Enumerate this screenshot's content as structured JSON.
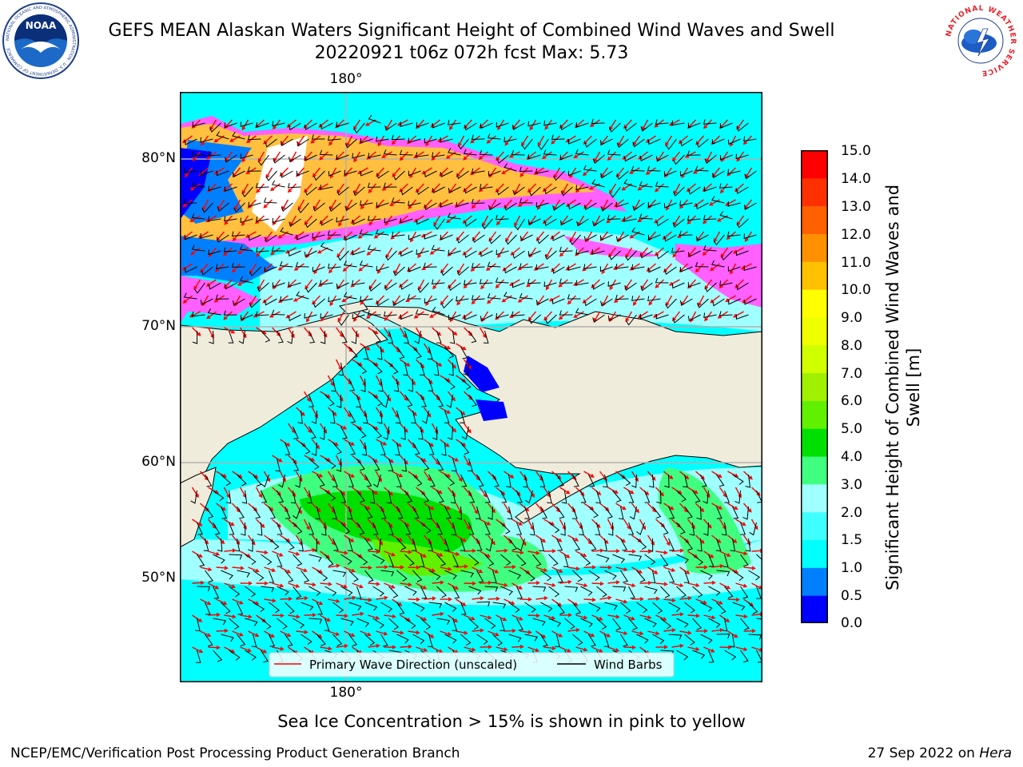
{
  "title": {
    "line1": "GEFS MEAN Alaskan Waters Significant Height of Combined Wind Waves and Swell",
    "line2": "20220921 t06z 072h fcst   Max: 5.73"
  },
  "logos": {
    "noaa": {
      "text": "NOAA",
      "ring_text": "NATIONAL OCEANIC AND ATMOSPHERIC ADMINISTRATION · U.S. DEPARTMENT OF COMMERCE"
    },
    "nws": {
      "ring_text": "NATIONAL WEATHER SERVICE"
    }
  },
  "map": {
    "lon_label_top": "180°",
    "lon_label_bottom": "180°",
    "lat_labels": [
      "80°N",
      "70°N",
      "60°N",
      "50°N"
    ],
    "legend": {
      "wave_direction": "Primary Wave Direction (unscaled)",
      "wind_barbs": "Wind Barbs"
    },
    "colors": {
      "land": "#efecdc",
      "ocean_base": "#00ffff",
      "wave_arrow": "#ff0000",
      "wind_barb": "#000000",
      "grid": "#b0b0b0"
    }
  },
  "colorbar": {
    "label": "Significant Height of Combined Wind Waves and Swell [m]",
    "ticks": [
      "15.0",
      "14.0",
      "13.0",
      "12.0",
      "11.0",
      "10.0",
      "9.0",
      "8.0",
      "7.0",
      "6.0",
      "5.0",
      "4.0",
      "3.0",
      "2.0",
      "1.5",
      "1.0",
      "0.5",
      "0.0"
    ],
    "colors_bottom_to_top": [
      "#0000ff",
      "#0080ff",
      "#00ffff",
      "#40ffff",
      "#a0ffff",
      "#40ff80",
      "#00e000",
      "#60f000",
      "#a0f000",
      "#d0ff00",
      "#f0ff00",
      "#ffff00",
      "#ffc000",
      "#ff9000",
      "#ff6000",
      "#ff3000",
      "#ff0000"
    ]
  },
  "sea_ice_note": "Sea Ice Concentration > 15% is shown in pink to yellow",
  "footer": {
    "left": "NCEP/EMC/Verification Post Processing Product Generation Branch",
    "date": "27 Sep 2022 on ",
    "host": "Hera"
  }
}
